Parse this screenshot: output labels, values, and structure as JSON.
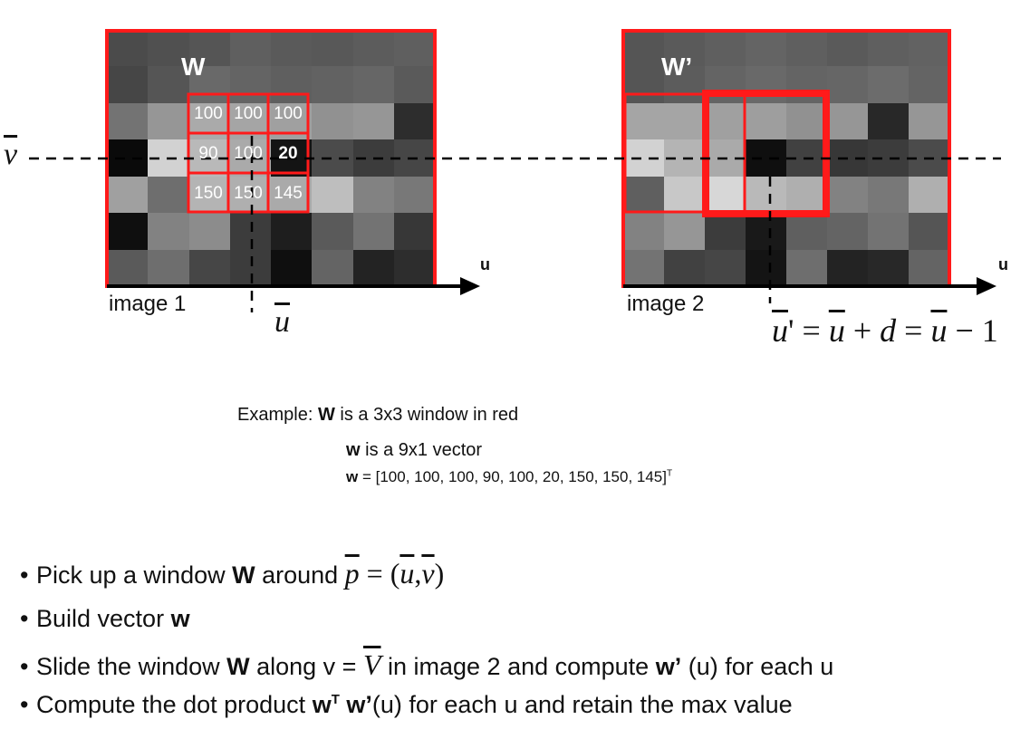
{
  "image1": {
    "window_label": "W",
    "caption": "image 1",
    "axis_label": "u",
    "window_values": [
      "100",
      "100",
      "100",
      "90",
      "100",
      "20",
      "150",
      "150",
      "145"
    ]
  },
  "image2": {
    "window_label": "W’",
    "caption": "image 2",
    "axis_label": "u"
  },
  "v_label": "v",
  "u_bar_label": "u",
  "disparity_formula": {
    "lhs": "u",
    "prime": "'",
    "eq1": " = ",
    "mid": "u",
    "plus": " + ",
    "d": "d",
    "eq2": " = ",
    "rhs": "u",
    "minus": " − 1"
  },
  "example": {
    "line1_prefix": "Example: ",
    "line1_bold": "W",
    "line1_suffix": " is a 3x3 window in red",
    "line2_bold": "w",
    "line2_suffix": " is a 9x1 vector",
    "line3_bold": "w",
    "line3_suffix": " = [100, 100, 100, 90, 100, 20, 150, 150, 145]",
    "line3_sup": "T"
  },
  "bullets": {
    "b1_prefix": "Pick up a window ",
    "b1_bold": "W",
    "b1_suffix": " around ",
    "b1_math_p": "p",
    "b1_math_eq": " = (",
    "b1_math_u": "u",
    "b1_math_comma": ",",
    "b1_math_v": "v",
    "b1_math_close": ")",
    "b2_prefix": "Build vector ",
    "b2_bold": "w",
    "b3_prefix": "Slide the window ",
    "b3_bold": "W",
    "b3_mid": " along v = ",
    "b3_math_v": "V",
    "b3_suffix1": " in image 2 and compute ",
    "b3_bold2": "w’",
    "b3_suffix2": " (u) for each u",
    "b4_prefix": "Compute the dot product ",
    "b4_bold1": "w",
    "b4_sup": "T",
    "b4_bold2": " w’",
    "b4_suffix": "(u) for each u and retain the max value"
  },
  "colors": {
    "accent_red": "#ff1a1a",
    "axis": "#000000"
  }
}
